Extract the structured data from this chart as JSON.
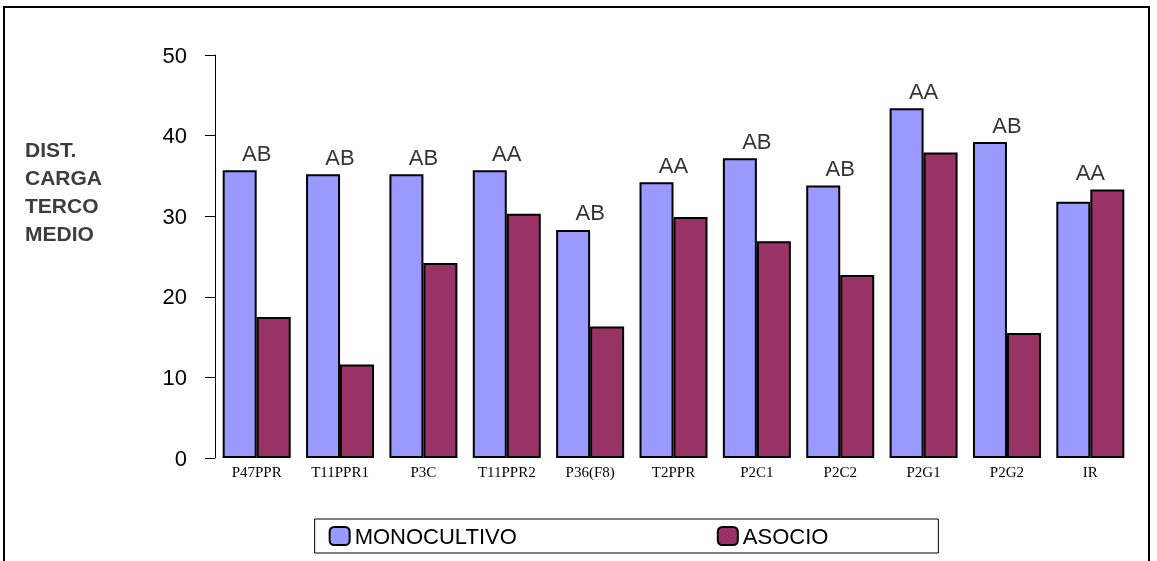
{
  "chart_data": {
    "type": "bar",
    "ylabel": "DIST. CARGA TERCO MEDIO",
    "categories": [
      "P47PPR",
      "T11PPR1",
      "P3C",
      "T11PPR2",
      "P36(F8)",
      "T2PPR",
      "P2C1",
      "P2C2",
      "P2G1",
      "P2G2",
      "IR"
    ],
    "series": [
      {
        "name": "MONOCULTIVO",
        "color": "#9999ff",
        "values": [
          35.7,
          35.2,
          35.2,
          35.7,
          28.3,
          34.2,
          37.2,
          33.8,
          43.4,
          39.2,
          31.8
        ]
      },
      {
        "name": "ASOCIO",
        "color": "#993366",
        "values": [
          17.5,
          11.6,
          24.2,
          30.3,
          16.3,
          29.9,
          26.9,
          22.7,
          37.9,
          15.5,
          33.3
        ]
      }
    ],
    "annotations": [
      {
        "text": "AB",
        "x": "P47PPR",
        "y": 35.7
      },
      {
        "text": "AB",
        "x": "T11PPR1",
        "y": 35.2
      },
      {
        "text": "AB",
        "x": "P3C",
        "y": 35.2
      },
      {
        "text": "AA",
        "x": "T11PPR2",
        "y": 35.7
      },
      {
        "text": "AB",
        "x": "P36(F8)",
        "y": 28.3
      },
      {
        "text": "AA",
        "x": "T2PPR",
        "y": 34.2
      },
      {
        "text": "AB",
        "x": "P2C1",
        "y": 37.2
      },
      {
        "text": "AB",
        "x": "P2C2",
        "y": 33.8
      },
      {
        "text": "AA",
        "x": "P2G1",
        "y": 43.4
      },
      {
        "text": "AB",
        "x": "P2G2",
        "y": 39.2
      },
      {
        "text": "AA",
        "x": "IR",
        "y": 33.3
      }
    ],
    "ylim": [
      0,
      50
    ],
    "yticks": [
      0,
      10,
      20,
      30,
      40,
      50
    ],
    "grid": false,
    "legend": "bottom"
  }
}
